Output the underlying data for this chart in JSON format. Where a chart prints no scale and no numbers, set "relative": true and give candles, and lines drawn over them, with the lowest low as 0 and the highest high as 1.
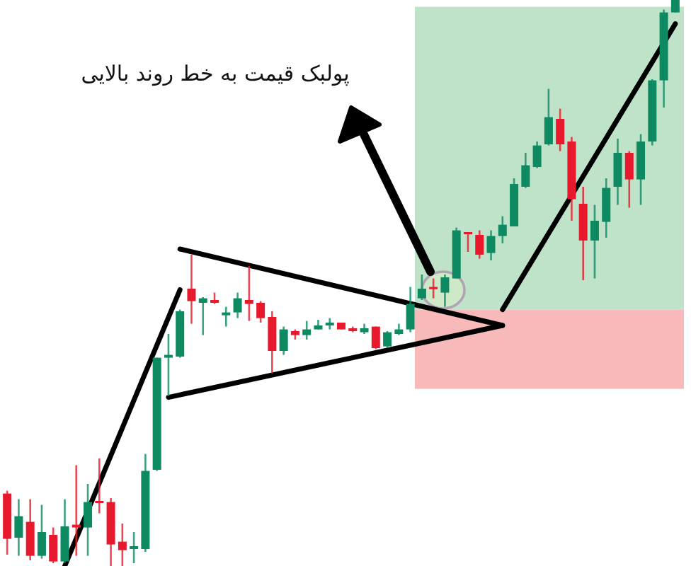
{
  "chart_data": {
    "type": "candlestick",
    "relative": true,
    "categories": [
      null,
      null,
      null,
      null,
      null,
      null,
      null,
      null,
      null,
      null,
      null,
      null,
      null,
      null,
      null,
      null,
      null,
      null,
      null,
      null,
      null,
      null,
      null,
      null,
      null,
      null,
      null,
      null,
      null,
      null,
      null,
      null,
      null,
      null,
      null,
      null,
      null,
      null,
      null,
      null,
      null,
      null,
      null,
      null,
      null,
      null,
      null,
      null,
      null,
      null,
      null,
      null,
      null,
      null,
      null,
      null,
      null,
      null,
      null
    ],
    "ohlc": [
      [
        0.128,
        0.133,
        0.02,
        0.048
      ],
      [
        0.05,
        0.118,
        0.018,
        0.088
      ],
      [
        0.078,
        0.118,
        0.01,
        0.018
      ],
      [
        0.018,
        0.108,
        0.013,
        0.06
      ],
      [
        0.055,
        0.068,
        0.005,
        0.008
      ],
      [
        0.008,
        0.118,
        0.005,
        0.07
      ],
      [
        0.073,
        0.178,
        0.018,
        0.068
      ],
      [
        0.068,
        0.145,
        0.018,
        0.113
      ],
      [
        0.115,
        0.19,
        0.093,
        0.113
      ],
      [
        0.113,
        0.12,
        0,
        0.038
      ],
      [
        0.043,
        0.075,
        0,
        0.028
      ],
      [
        0.03,
        0.06,
        0.005,
        0.035
      ],
      [
        0.03,
        0.198,
        0.025,
        0.168
      ],
      [
        0.17,
        0.368,
        0.168,
        0.368
      ],
      [
        0.368,
        0.41,
        0.3,
        0.373
      ],
      [
        0.37,
        0.453,
        0.368,
        0.45
      ],
      [
        0.49,
        0.55,
        0.428,
        0.468
      ],
      [
        0.465,
        0.475,
        0.408,
        0.473
      ],
      [
        0.47,
        0.483,
        0.463,
        0.465
      ],
      [
        0.443,
        0.458,
        0.423,
        0.448
      ],
      [
        0.448,
        0.483,
        0.438,
        0.473
      ],
      [
        0.47,
        0.53,
        0.433,
        0.463
      ],
      [
        0.465,
        0.468,
        0.43,
        0.438
      ],
      [
        0.44,
        0.45,
        0.34,
        0.38
      ],
      [
        0.38,
        0.423,
        0.373,
        0.418
      ],
      [
        0.415,
        0.418,
        0.4,
        0.408
      ],
      [
        0.408,
        0.433,
        0.4,
        0.418
      ],
      [
        0.418,
        0.435,
        0.418,
        0.425
      ],
      [
        0.425,
        0.438,
        0.418,
        0.43
      ],
      [
        0.43,
        0.43,
        0.418,
        0.418
      ],
      [
        0.42,
        0.423,
        0.413,
        0.415
      ],
      [
        0.413,
        0.428,
        0.41,
        0.42
      ],
      [
        0.423,
        0.423,
        0.383,
        0.385
      ],
      [
        0.388,
        0.415,
        0.385,
        0.413
      ],
      [
        0.41,
        0.428,
        0.408,
        0.418
      ],
      [
        0.418,
        0.493,
        0.413,
        0.463
      ],
      [
        0.473,
        0.515,
        0.47,
        0.49
      ],
      [
        0.493,
        0.508,
        0.473,
        0.49
      ],
      [
        0.483,
        0.515,
        0.458,
        0.51
      ],
      [
        0.508,
        0.598,
        0.508,
        0.593
      ],
      [
        0.59,
        0.59,
        0.555,
        0.588
      ],
      [
        0.585,
        0.593,
        0.543,
        0.55
      ],
      [
        0.553,
        0.593,
        0.54,
        0.583
      ],
      [
        0.583,
        0.618,
        0.57,
        0.603
      ],
      [
        0.6,
        0.685,
        0.6,
        0.675
      ],
      [
        0.67,
        0.73,
        0.668,
        0.708
      ],
      [
        0.705,
        0.75,
        0.703,
        0.743
      ],
      [
        0.745,
        0.843,
        0.743,
        0.793
      ],
      [
        0.79,
        0.808,
        0.733,
        0.745
      ],
      [
        0.75,
        0.758,
        0.61,
        0.648
      ],
      [
        0.64,
        0.67,
        0.505,
        0.575
      ],
      [
        0.575,
        0.638,
        0.508,
        0.61
      ],
      [
        0.608,
        0.685,
        0.58,
        0.668
      ],
      [
        0.67,
        0.755,
        0.638,
        0.73
      ],
      [
        0.73,
        0.733,
        0.633,
        0.683
      ],
      [
        0.683,
        0.763,
        0.638,
        0.75
      ],
      [
        0.75,
        0.86,
        0.743,
        0.858
      ],
      [
        0.858,
        0.983,
        0.81,
        0.978
      ],
      [
        0.978,
        1,
        0.978,
        1
      ]
    ],
    "colors": [
      "#e8192c",
      "#0e8a63",
      "#e8192c",
      "#0e8a63",
      "#e8192c",
      "#0e8a63",
      "#e8192c",
      "#0e8a63",
      "#e8192c",
      "#e8192c",
      "#e8192c",
      "#0e8a63",
      "#0e8a63",
      "#0e8a63",
      "#0e8a63",
      "#0e8a63",
      "#e8192c",
      "#0e8a63",
      "#e8192c",
      "#0e8a63",
      "#0e8a63",
      "#e8192c",
      "#e8192c",
      "#e8192c",
      "#0e8a63",
      "#e8192c",
      "#0e8a63",
      "#0e8a63",
      "#0e8a63",
      "#e8192c",
      "#e8192c",
      "#0e8a63",
      "#e8192c",
      "#0e8a63",
      "#0e8a63",
      "#0e8a63",
      "#0e8a63",
      "#e8192c",
      "#0e8a63",
      "#0e8a63",
      "#e8192c",
      "#e8192c",
      "#0e8a63",
      "#0e8a63",
      "#0e8a63",
      "#0e8a63",
      "#0e8a63",
      "#0e8a63",
      "#e8192c",
      "#e8192c",
      "#e8192c",
      "#0e8a63",
      "#0e8a63",
      "#0e8a63",
      "#e8192c",
      "#0e8a63",
      "#0e8a63",
      "#0e8a63",
      "#0e8a63"
    ],
    "series": [
      {
        "type": "line",
        "color": "#000000",
        "values": [
          null,
          null,
          null,
          null,
          null,
          0,
          null,
          null,
          null,
          null,
          null,
          null,
          null,
          null,
          null,
          0.488,
          null,
          null,
          null,
          null,
          null,
          null,
          null,
          null,
          null,
          null,
          null,
          null,
          null,
          null,
          null,
          null,
          null,
          null,
          null,
          null,
          null,
          null,
          null,
          null,
          null,
          null,
          null,
          null,
          null,
          null,
          null,
          null,
          null,
          null,
          null,
          null,
          null,
          null,
          null,
          null,
          null,
          null,
          null
        ]
      },
      {
        "type": "line",
        "color": "#000000",
        "values": [
          null,
          null,
          null,
          null,
          null,
          null,
          null,
          null,
          null,
          null,
          null,
          null,
          null,
          null,
          null,
          0.56,
          null,
          null,
          null,
          null,
          null,
          null,
          null,
          null,
          null,
          null,
          null,
          null,
          null,
          null,
          null,
          null,
          null,
          null,
          null,
          null,
          null,
          null,
          null,
          null,
          null,
          null,
          null,
          0.425,
          null,
          null,
          null,
          null,
          null,
          null,
          null,
          null,
          null,
          null,
          null,
          null,
          null,
          null,
          null
        ]
      },
      {
        "type": "line",
        "color": "#000000",
        "values": [
          null,
          null,
          null,
          null,
          null,
          null,
          null,
          null,
          null,
          null,
          null,
          null,
          null,
          null,
          0.298,
          null,
          null,
          null,
          null,
          null,
          null,
          null,
          null,
          null,
          null,
          null,
          null,
          null,
          null,
          null,
          null,
          null,
          null,
          null,
          null,
          null,
          null,
          null,
          null,
          null,
          null,
          null,
          null,
          0.425,
          null,
          null,
          null,
          null,
          null,
          null,
          null,
          null,
          null,
          null,
          null,
          null,
          null,
          null,
          null
        ]
      },
      {
        "type": "line",
        "color": "#000000",
        "values": [
          null,
          null,
          null,
          null,
          null,
          null,
          null,
          null,
          null,
          null,
          null,
          null,
          null,
          null,
          null,
          null,
          null,
          null,
          null,
          null,
          null,
          null,
          null,
          null,
          null,
          null,
          null,
          null,
          null,
          null,
          null,
          null,
          null,
          null,
          null,
          null,
          null,
          null,
          null,
          null,
          null,
          null,
          null,
          0.453,
          null,
          null,
          null,
          null,
          null,
          null,
          null,
          null,
          null,
          null,
          null,
          null,
          null,
          null,
          0.958
        ]
      }
    ],
    "bands": [
      {
        "axis": "y",
        "from": 0.453,
        "to": 0.988,
        "color": "#bfe3c9"
      },
      {
        "axis": "y",
        "from": 0.313,
        "to": 0.453,
        "color": "#f7b9b9"
      }
    ],
    "annotations": [
      "پولبک قیمت به خط روند بالایی"
    ]
  }
}
